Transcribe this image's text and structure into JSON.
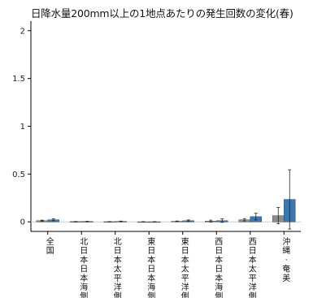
{
  "chart_data": {
    "type": "bar",
    "title": "日降水量200mm以上の1地点あたりの発生回数の変化(春)",
    "xlabel": "",
    "ylabel": "",
    "ylim": [
      -0.1,
      2.1
    ],
    "yticks": [
      0,
      0.5,
      1,
      1.5,
      2
    ],
    "ytick_labels": [
      "0",
      "0.5",
      "1",
      "1.5",
      "2"
    ],
    "categories": [
      "全国",
      "北日本日本海側",
      "北日本太平洋側",
      "東日本日本海側",
      "東日本太平洋側",
      "西日本日本海側",
      "西日本太平洋側",
      "沖縄・奄美"
    ],
    "colors": {
      "series1": "#8c8c8c",
      "series2": "#3a78b5",
      "error_bar": "#222222",
      "zero_line": "#cccccc",
      "axis": "#000000"
    },
    "series": [
      {
        "values": [
          0.012,
          0.003,
          0.002,
          0.001,
          0.006,
          0.008,
          0.022,
          0.065
        ],
        "err_low": [
          0.006,
          0.001,
          0.001,
          0.0,
          0.003,
          0.01,
          0.012,
          0.085
        ],
        "err_high": [
          0.006,
          0.001,
          0.001,
          0.001,
          0.003,
          0.01,
          0.012,
          0.085
        ]
      },
      {
        "values": [
          0.022,
          0.004,
          0.005,
          0.001,
          0.012,
          0.013,
          0.055,
          0.235
        ],
        "err_low": [
          0.01,
          0.002,
          0.003,
          0.001,
          0.008,
          0.018,
          0.035,
          0.31
        ],
        "err_high": [
          0.01,
          0.002,
          0.003,
          0.001,
          0.008,
          0.018,
          0.035,
          0.31
        ]
      }
    ],
    "grid": false,
    "legend": "none"
  }
}
